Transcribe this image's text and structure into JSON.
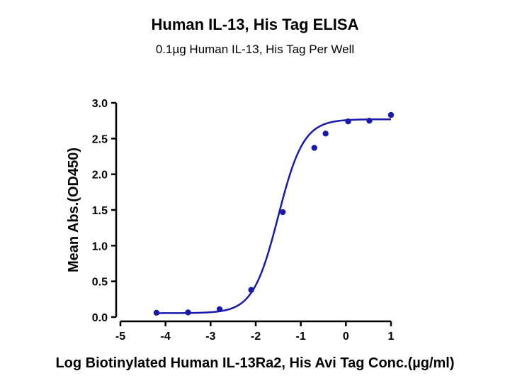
{
  "chart_data": {
    "type": "scatter",
    "title": "Human IL-13, His Tag ELISA",
    "subtitle": "0.1µg Human IL-13, His Tag Per Well",
    "xlabel": "Log Biotinylated Human IL-13Ra2, His Avi Tag Conc.(µg/ml)",
    "ylabel": "Mean Abs.(OD450)",
    "xlim": [
      -5,
      1
    ],
    "ylim": [
      0,
      3
    ],
    "xticks": [
      "-5",
      "-4",
      "-3",
      "-2",
      "-1",
      "0",
      "1"
    ],
    "yticks": [
      "0.0",
      "0.5",
      "1.0",
      "1.5",
      "2.0",
      "2.5",
      "3.0"
    ],
    "series": [
      {
        "color": "#1a1aaa",
        "x": [
          -4.2,
          -3.5,
          -2.8,
          -2.1,
          -1.4,
          -0.7,
          -0.45,
          0.05,
          0.52,
          1.0
        ],
        "y": [
          0.06,
          0.065,
          0.11,
          0.38,
          1.47,
          2.37,
          2.57,
          2.74,
          2.75,
          2.83
        ]
      }
    ],
    "fit": {
      "bottom": 0.055,
      "top": 2.77,
      "logEC50": -1.5,
      "hill": 1.55
    },
    "grid": false
  }
}
